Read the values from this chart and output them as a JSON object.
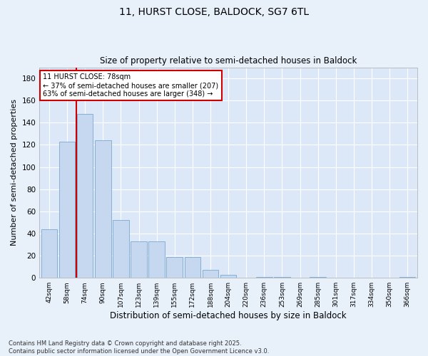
{
  "title1": "11, HURST CLOSE, BALDOCK, SG7 6TL",
  "title2": "Size of property relative to semi-detached houses in Baldock",
  "xlabel": "Distribution of semi-detached houses by size in Baldock",
  "ylabel": "Number of semi-detached properties",
  "bin_labels": [
    "42sqm",
    "58sqm",
    "74sqm",
    "90sqm",
    "107sqm",
    "123sqm",
    "139sqm",
    "155sqm",
    "172sqm",
    "188sqm",
    "204sqm",
    "220sqm",
    "236sqm",
    "253sqm",
    "269sqm",
    "285sqm",
    "301sqm",
    "317sqm",
    "334sqm",
    "350sqm",
    "366sqm"
  ],
  "bar_values": [
    44,
    123,
    148,
    124,
    52,
    33,
    33,
    19,
    19,
    7,
    3,
    0,
    1,
    1,
    0,
    1,
    0,
    0,
    0,
    0,
    1
  ],
  "bar_color": "#c5d8f0",
  "bar_edgecolor": "#7aa8d0",
  "vline_x_index": 2,
  "vline_color": "#cc0000",
  "property_label": "11 HURST CLOSE: 78sqm",
  "annotation_line1": "← 37% of semi-detached houses are smaller (207)",
  "annotation_line2": "63% of semi-detached houses are larger (348) →",
  "annotation_box_color": "#ffffff",
  "annotation_box_edgecolor": "#cc0000",
  "ylim": [
    0,
    190
  ],
  "yticks": [
    0,
    20,
    40,
    60,
    80,
    100,
    120,
    140,
    160,
    180
  ],
  "footnote": "Contains HM Land Registry data © Crown copyright and database right 2025.\nContains public sector information licensed under the Open Government Licence v3.0.",
  "bg_color": "#e8f0fa",
  "plot_bg_color": "#dce8f8"
}
